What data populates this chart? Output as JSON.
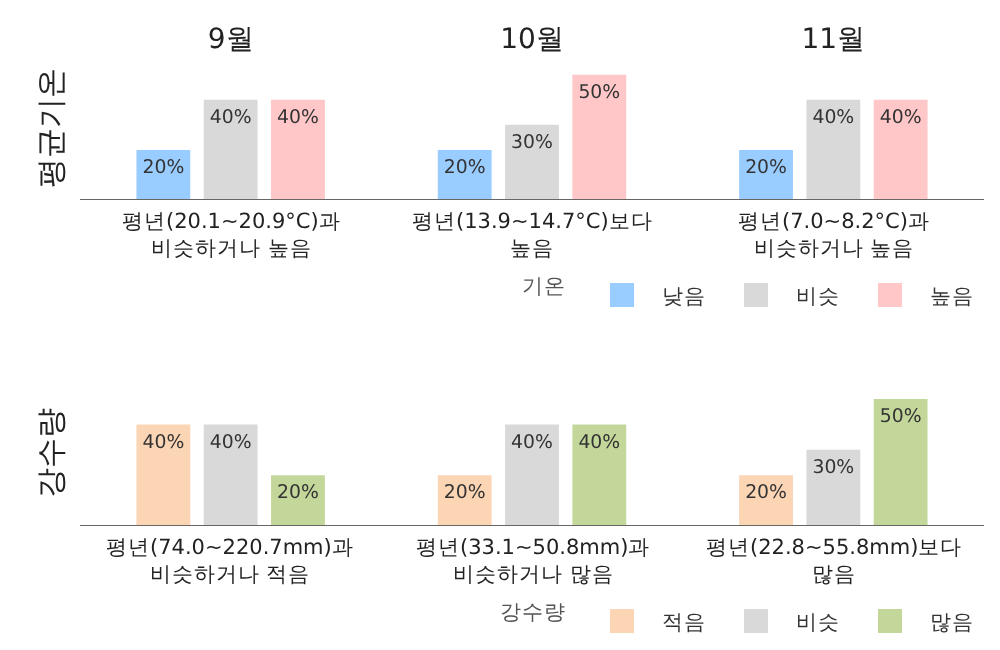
{
  "chart_data": [
    {
      "type": "bar",
      "ylabel": "평균기온",
      "categories": [
        "9월",
        "10월",
        "11월"
      ],
      "legend": "bottom right",
      "legend_title": "기온",
      "series": [
        {
          "name": "낮음",
          "color": "#99ccff",
          "values": [
            20,
            20,
            20
          ],
          "value_labels": [
            "20%",
            "20%",
            "20%"
          ]
        },
        {
          "name": "비슷",
          "color": "#d9d9d9",
          "values": [
            40,
            30,
            40
          ],
          "value_labels": [
            "40%",
            "30%",
            "40%"
          ]
        },
        {
          "name": "높음",
          "color": "#ffc7c7",
          "values": [
            40,
            50,
            40
          ],
          "value_labels": [
            "40%",
            "50%",
            "40%"
          ]
        }
      ],
      "annotations": [
        "평년(20.1~20.9°C)과\n비슷하거나 높음",
        "평년(13.9~14.7°C)보다\n높음",
        "평년(7.0~8.2°C)과\n비슷하거나 높음"
      ]
    },
    {
      "type": "bar",
      "ylabel": "강수량",
      "categories": [
        null,
        null,
        null
      ],
      "legend": "bottom right",
      "legend_title": "강수량",
      "series": [
        {
          "name": "적음",
          "color": "#fcd5b4",
          "values": [
            40,
            20,
            20
          ],
          "value_labels": [
            "40%",
            "20%",
            "20%"
          ]
        },
        {
          "name": "비슷",
          "color": "#d9d9d9",
          "values": [
            40,
            40,
            30
          ],
          "value_labels": [
            "40%",
            "40%",
            "30%"
          ]
        },
        {
          "name": "많음",
          "color": "#c4d79b",
          "values": [
            20,
            40,
            50
          ],
          "value_labels": [
            "20%",
            "40%",
            "50%"
          ]
        }
      ],
      "annotations": [
        "평년(74.0~220.7mm)과\n비슷하거나 적음",
        "평년(33.1~50.8mm)과\n비슷하거나 많음",
        "평년(22.8~55.8mm)보다\n많음"
      ]
    }
  ]
}
